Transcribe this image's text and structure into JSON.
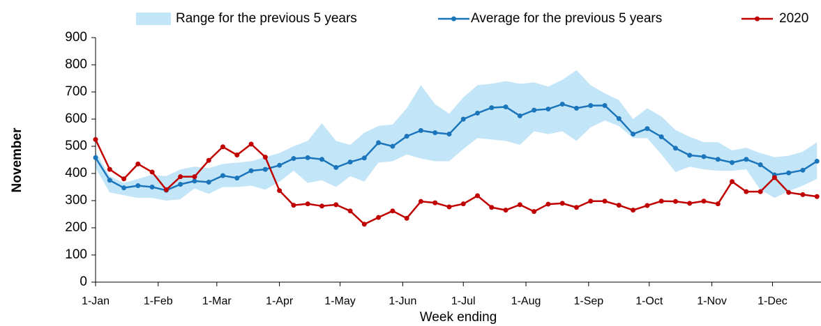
{
  "chart_data": {
    "type": "line",
    "x_label": "Week ending",
    "y_label": "November",
    "x": [
      0,
      7,
      14,
      21,
      28,
      35,
      42,
      49,
      56,
      63,
      70,
      77,
      84,
      91,
      98,
      105,
      112,
      119,
      126,
      133,
      140,
      147,
      154,
      161,
      168,
      175,
      182,
      189,
      196,
      203,
      210,
      217,
      224,
      231,
      238,
      245,
      252,
      259,
      266,
      273,
      280,
      287,
      294,
      301,
      308,
      315,
      322,
      329,
      336,
      343,
      350,
      357
    ],
    "xlim": [
      0,
      359
    ],
    "xticks": [
      {
        "value": 0,
        "label": "1-Jan"
      },
      {
        "value": 31,
        "label": "1-Feb"
      },
      {
        "value": 60,
        "label": "1-Mar"
      },
      {
        "value": 91,
        "label": "1-Apr"
      },
      {
        "value": 121,
        "label": "1-May"
      },
      {
        "value": 152,
        "label": "1-Jun"
      },
      {
        "value": 182,
        "label": "1-Jul"
      },
      {
        "value": 213,
        "label": "1-Aug"
      },
      {
        "value": 244,
        "label": "1-Sep"
      },
      {
        "value": 274,
        "label": "1-Oct"
      },
      {
        "value": 305,
        "label": "1-Nov"
      },
      {
        "value": 335,
        "label": "1-Dec"
      }
    ],
    "ylim": [
      0,
      900
    ],
    "yticks": [
      0,
      100,
      200,
      300,
      400,
      500,
      600,
      700,
      800,
      900
    ],
    "grid": false,
    "legend": "top",
    "band": {
      "name": "Range for the previous 5 years",
      "color": "#c3e5f8",
      "high": [
        480,
        390,
        365,
        380,
        395,
        390,
        415,
        425,
        420,
        435,
        440,
        445,
        460,
        475,
        500,
        520,
        585,
        520,
        505,
        550,
        575,
        580,
        640,
        725,
        655,
        620,
        680,
        725,
        730,
        740,
        730,
        735,
        720,
        745,
        780,
        725,
        695,
        670,
        600,
        640,
        610,
        560,
        535,
        515,
        515,
        485,
        495,
        475,
        460,
        465,
        480,
        515
      ],
      "low": [
        420,
        330,
        320,
        310,
        310,
        300,
        305,
        345,
        325,
        350,
        350,
        355,
        340,
        370,
        410,
        365,
        375,
        350,
        390,
        370,
        440,
        445,
        470,
        455,
        445,
        445,
        490,
        530,
        525,
        520,
        505,
        555,
        545,
        555,
        520,
        570,
        595,
        575,
        530,
        530,
        470,
        405,
        425,
        415,
        410,
        410,
        415,
        340,
        310,
        335,
        355,
        380
      ]
    },
    "series": [
      {
        "name": "Average for the previous 5 years",
        "color": "#1b75bb",
        "values": [
          458,
          375,
          347,
          355,
          350,
          338,
          360,
          372,
          368,
          392,
          383,
          410,
          415,
          430,
          455,
          458,
          452,
          422,
          442,
          457,
          513,
          500,
          537,
          558,
          550,
          545,
          600,
          622,
          642,
          645,
          612,
          633,
          637,
          655,
          640,
          650,
          650,
          602,
          545,
          565,
          535,
          493,
          467,
          462,
          452,
          440,
          452,
          432,
          395,
          402,
          412,
          445
        ]
      },
      {
        "name": "2020",
        "color": "#c00000",
        "values": [
          525,
          415,
          380,
          435,
          405,
          340,
          388,
          388,
          448,
          498,
          468,
          508,
          460,
          337,
          283,
          288,
          280,
          285,
          262,
          213,
          238,
          262,
          235,
          297,
          292,
          277,
          288,
          318,
          275,
          265,
          285,
          260,
          287,
          290,
          275,
          298,
          298,
          283,
          265,
          282,
          298,
          297,
          290,
          298,
          288,
          370,
          333,
          333,
          385,
          330,
          322,
          315
        ]
      }
    ]
  }
}
